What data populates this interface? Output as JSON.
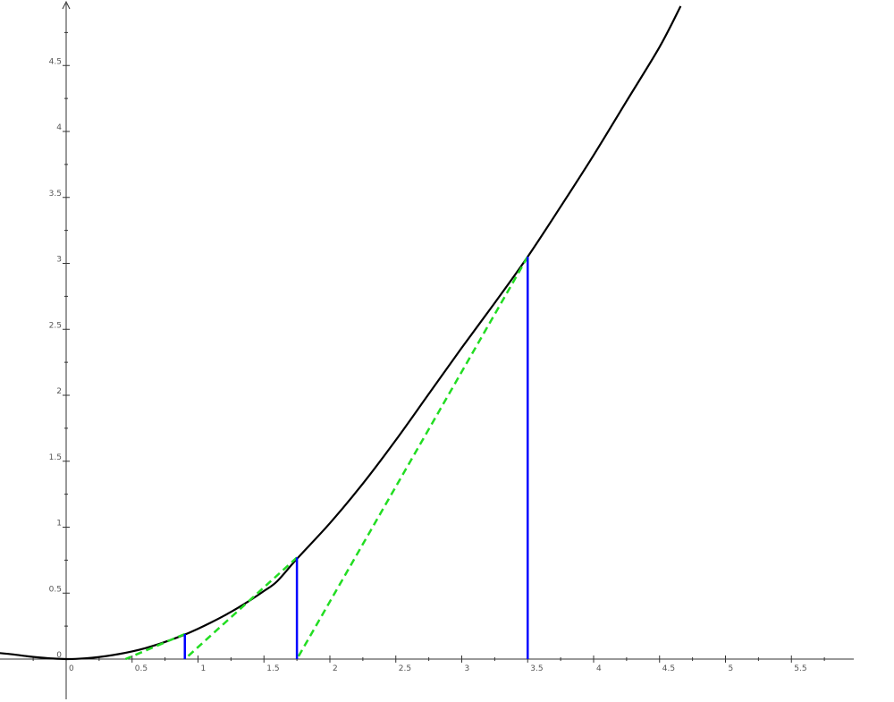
{
  "chart_data": {
    "type": "line",
    "title": "",
    "xlabel": "",
    "ylabel": "",
    "xlim": [
      -0.55,
      5.9
    ],
    "ylim": [
      -0.3,
      4.95
    ],
    "grid": false,
    "x_ticks": [
      {
        "value": 0,
        "label": "0"
      },
      {
        "value": 0.5,
        "label": "0.5"
      },
      {
        "value": 1,
        "label": "1"
      },
      {
        "value": 1.5,
        "label": "1.5"
      },
      {
        "value": 2,
        "label": "2"
      },
      {
        "value": 2.5,
        "label": "2.5"
      },
      {
        "value": 3,
        "label": "3"
      },
      {
        "value": 3.5,
        "label": "3.5"
      },
      {
        "value": 4,
        "label": "4"
      },
      {
        "value": 4.5,
        "label": "4.5"
      },
      {
        "value": 5,
        "label": "5"
      },
      {
        "value": 5.5,
        "label": "5.5"
      }
    ],
    "y_ticks": [
      {
        "value": 0,
        "label": "0"
      },
      {
        "value": 0.5,
        "label": "0.5"
      },
      {
        "value": 1,
        "label": "1"
      },
      {
        "value": 1.5,
        "label": "1.5"
      },
      {
        "value": 2,
        "label": "2"
      },
      {
        "value": 2.5,
        "label": "2.5"
      },
      {
        "value": 3,
        "label": "3"
      },
      {
        "value": 3.5,
        "label": "3.5"
      },
      {
        "value": 4,
        "label": "4"
      },
      {
        "value": 4.5,
        "label": "4.5"
      }
    ],
    "curve": {
      "color": "#000000",
      "points": [
        [
          -0.55,
          0.05
        ],
        [
          -0.4,
          0.035
        ],
        [
          -0.3,
          0.022
        ],
        [
          -0.2,
          0.012
        ],
        [
          -0.1,
          0.004
        ],
        [
          0,
          0
        ],
        [
          0.1,
          0.003
        ],
        [
          0.2,
          0.01
        ],
        [
          0.3,
          0.022
        ],
        [
          0.4,
          0.038
        ],
        [
          0.5,
          0.058
        ],
        [
          0.6,
          0.083
        ],
        [
          0.7,
          0.113
        ],
        [
          0.8,
          0.148
        ],
        [
          0.9,
          0.186
        ],
        [
          1.0,
          0.23
        ],
        [
          1.1,
          0.278
        ],
        [
          1.2,
          0.33
        ],
        [
          1.3,
          0.387
        ],
        [
          1.4,
          0.449
        ],
        [
          1.5,
          0.516
        ],
        [
          1.6,
          0.59
        ],
        [
          1.75,
          0.76
        ],
        [
          2.0,
          1.03
        ],
        [
          2.25,
          1.33
        ],
        [
          2.5,
          1.66
        ],
        [
          2.75,
          2.01
        ],
        [
          3.0,
          2.36
        ],
        [
          3.25,
          2.7
        ],
        [
          3.5,
          3.05
        ],
        [
          3.75,
          3.43
        ],
        [
          4.0,
          3.82
        ],
        [
          4.25,
          4.23
        ],
        [
          4.5,
          4.64
        ],
        [
          4.66,
          4.95
        ]
      ]
    },
    "vertical_segments": {
      "color": "#0000ff",
      "items": [
        {
          "x": 3.5,
          "y_from": 0,
          "y_to": 3.05
        },
        {
          "x": 1.75,
          "y_from": 0,
          "y_to": 0.77
        },
        {
          "x": 0.9,
          "y_from": 0,
          "y_to": 0.19
        }
      ]
    },
    "tangent_segments": {
      "color": "#22dd22",
      "style": "dashed",
      "items": [
        {
          "x1": 3.5,
          "y1": 3.05,
          "x2": 1.75,
          "y2": 0
        },
        {
          "x1": 1.75,
          "y1": 0.77,
          "x2": 0.9,
          "y2": 0
        },
        {
          "x1": 0.9,
          "y1": 0.19,
          "x2": 0.45,
          "y2": 0
        }
      ]
    }
  }
}
